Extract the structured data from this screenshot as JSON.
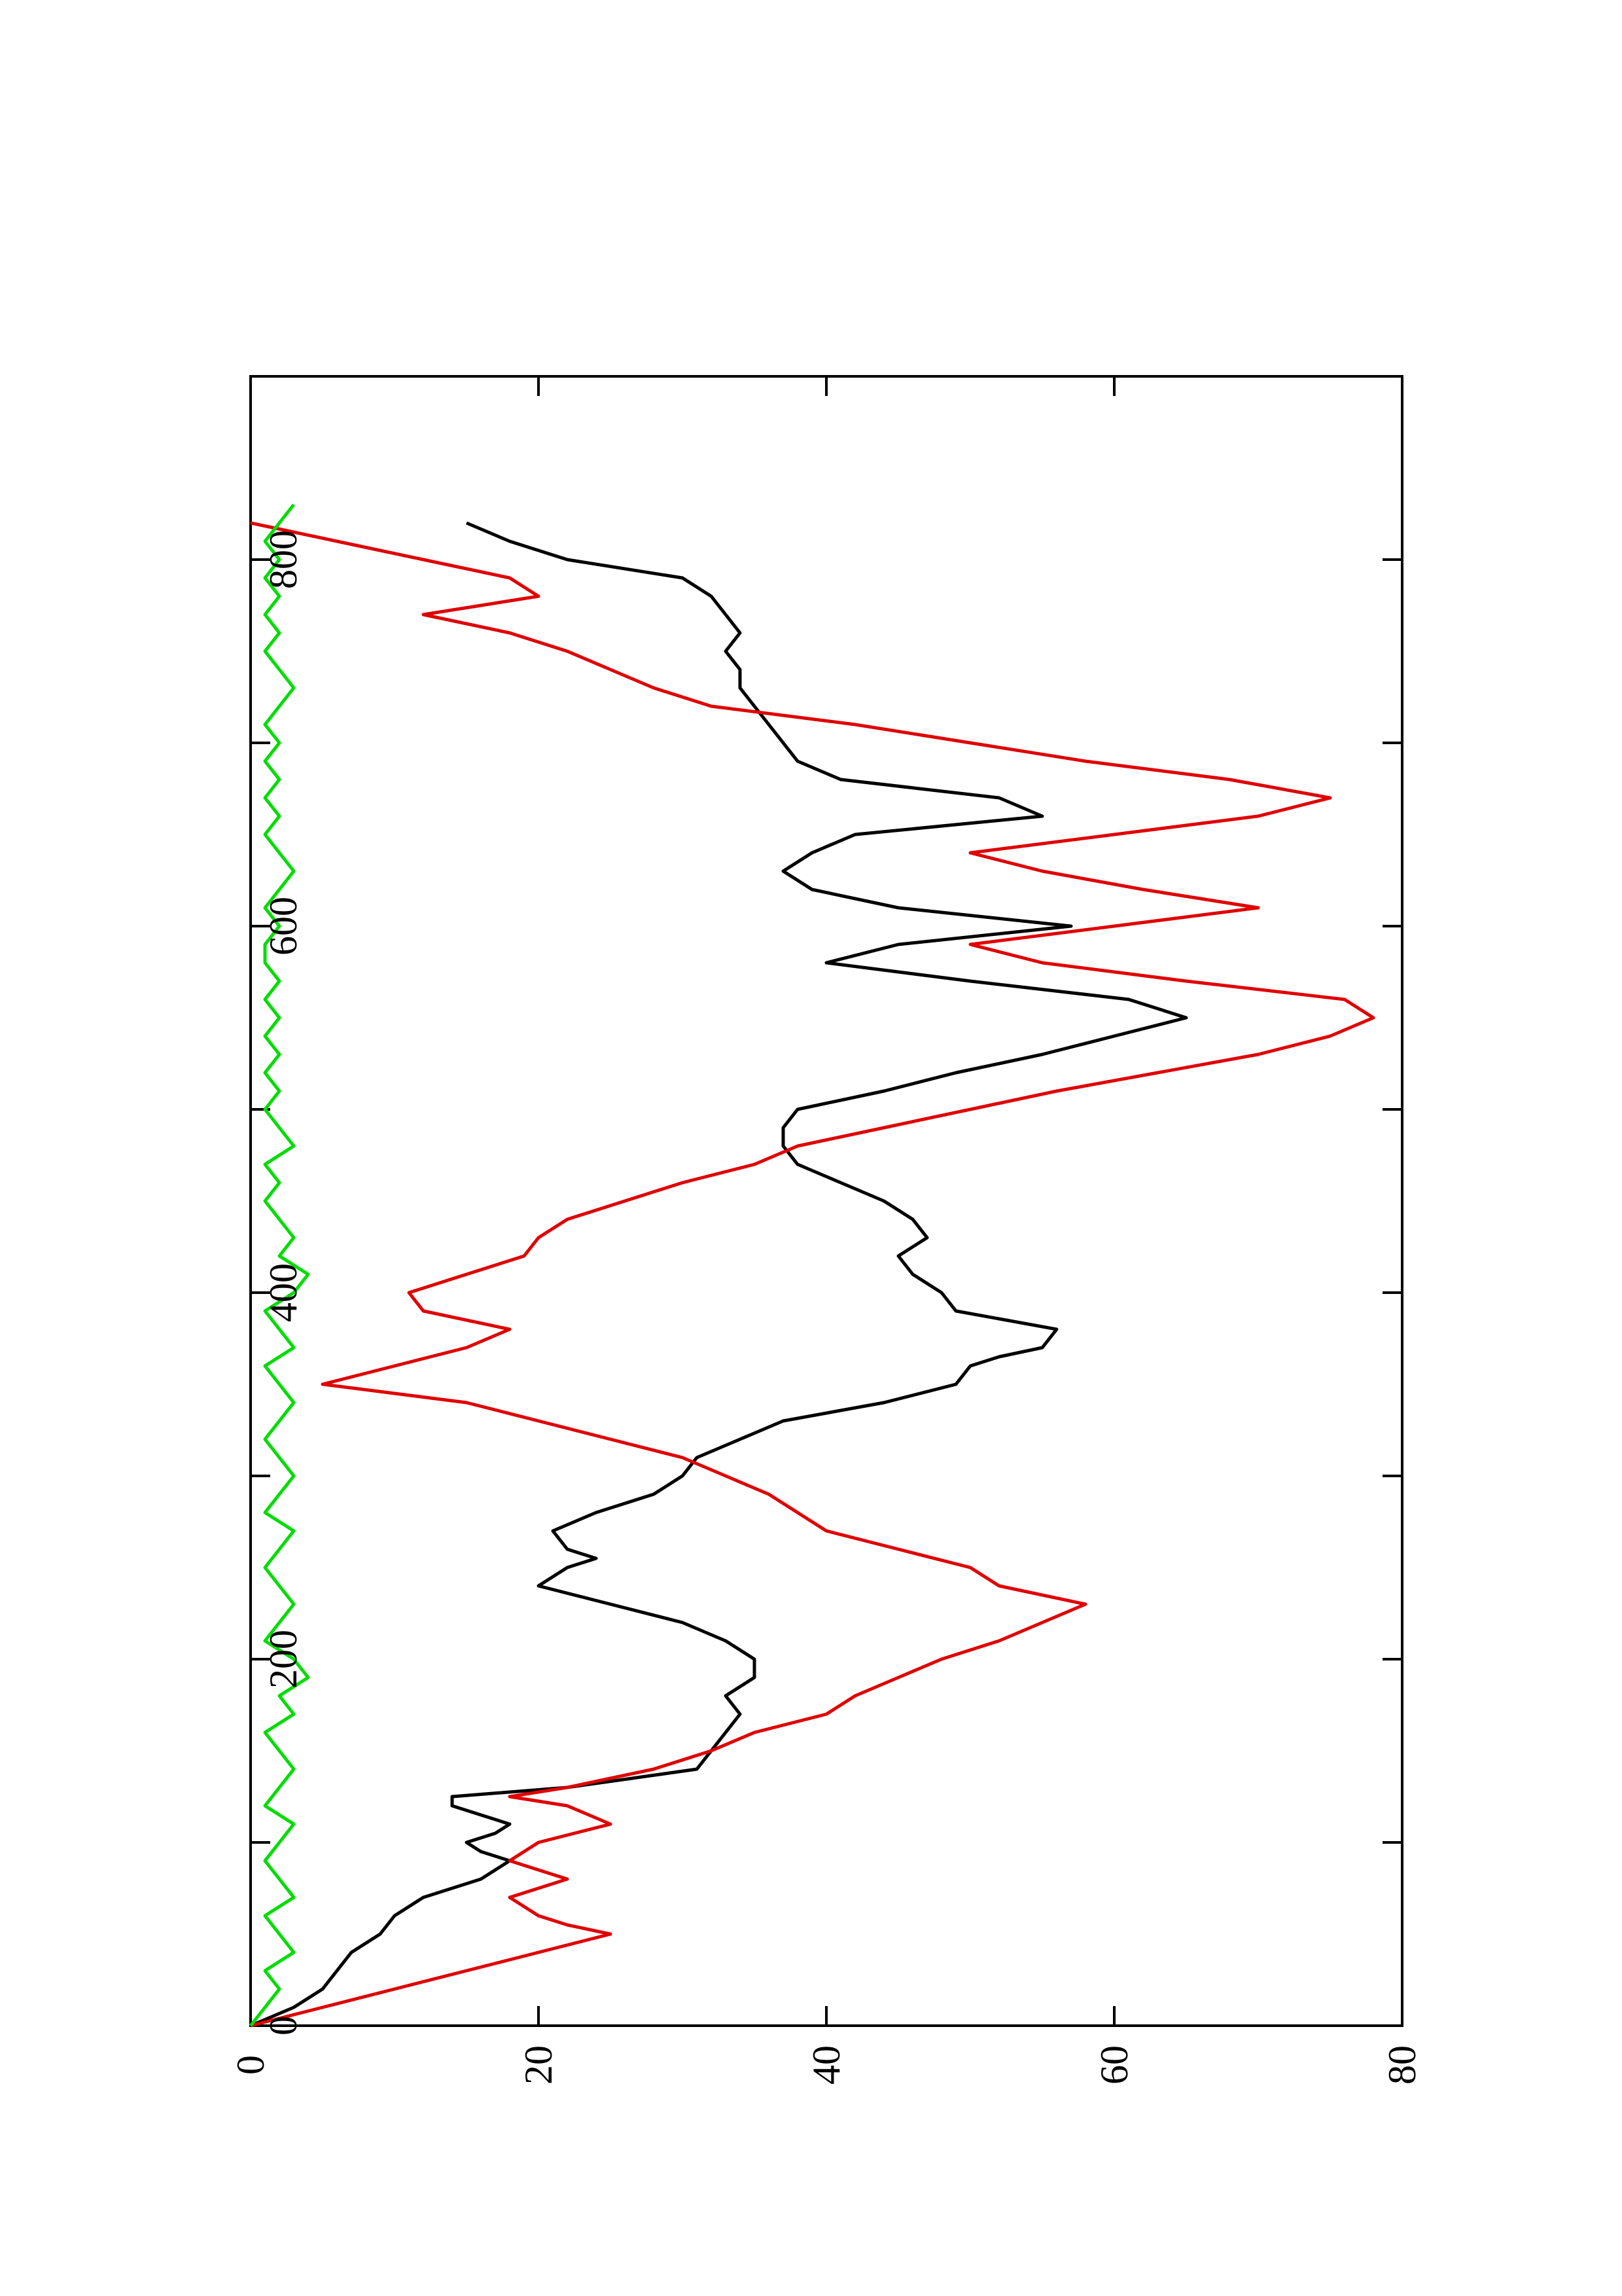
{
  "chart_data": {
    "type": "line",
    "orientation": "rotated-90-ccw",
    "title": "",
    "xlabel": "",
    "ylabel": "",
    "xlim": [
      0,
      900
    ],
    "ylim": [
      0,
      80
    ],
    "x_ticks": [
      0,
      200,
      400,
      600,
      800
    ],
    "x_ticks_minor": [
      100,
      300,
      500,
      700
    ],
    "y_ticks": [
      0,
      20,
      40,
      60,
      80
    ],
    "grid": false,
    "legend": "none",
    "series": [
      {
        "color": "#000000",
        "x": [
          0,
          10,
          20,
          30,
          40,
          50,
          60,
          70,
          80,
          85,
          90,
          95,
          100,
          105,
          110,
          115,
          120,
          125,
          130,
          140,
          150,
          160,
          170,
          180,
          190,
          200,
          210,
          220,
          230,
          240,
          250,
          255,
          260,
          270,
          280,
          290,
          300,
          310,
          320,
          330,
          340,
          350,
          360,
          365,
          370,
          380,
          390,
          400,
          410,
          420,
          430,
          440,
          450,
          460,
          470,
          480,
          490,
          500,
          510,
          520,
          530,
          540,
          550,
          560,
          570,
          580,
          590,
          600,
          610,
          620,
          630,
          640,
          650,
          660,
          670,
          680,
          690,
          700,
          710,
          720,
          730,
          740,
          750,
          760,
          770,
          780,
          790,
          800,
          810,
          820
        ],
        "y": [
          0,
          3,
          5,
          6,
          7,
          9,
          10,
          12,
          16,
          17,
          18,
          16,
          15,
          17,
          18,
          16,
          14,
          14,
          22,
          31,
          32,
          33,
          34,
          33,
          35,
          35,
          33,
          30,
          25,
          20,
          22,
          24,
          22,
          21,
          24,
          28,
          30,
          31,
          34,
          37,
          44,
          49,
          50,
          52,
          55,
          56,
          49,
          48,
          46,
          45,
          47,
          46,
          44,
          41,
          38,
          37,
          37,
          38,
          44,
          49,
          55,
          60,
          65,
          61,
          50,
          40,
          45,
          57,
          45,
          39,
          37,
          39,
          42,
          55,
          52,
          41,
          38,
          37,
          36,
          35,
          34,
          34,
          33,
          34,
          33,
          32,
          30,
          22,
          18,
          15
        ]
      },
      {
        "color": "#e00000",
        "x": [
          0,
          10,
          20,
          30,
          40,
          50,
          55,
          60,
          70,
          80,
          90,
          100,
          110,
          120,
          125,
          130,
          140,
          150,
          160,
          170,
          180,
          190,
          200,
          210,
          220,
          230,
          240,
          250,
          260,
          270,
          280,
          290,
          300,
          310,
          320,
          330,
          340,
          350,
          360,
          370,
          380,
          390,
          400,
          410,
          420,
          430,
          440,
          450,
          460,
          470,
          480,
          490,
          500,
          510,
          520,
          530,
          540,
          550,
          560,
          570,
          580,
          590,
          600,
          610,
          620,
          630,
          640,
          650,
          660,
          670,
          680,
          690,
          700,
          710,
          720,
          730,
          740,
          750,
          760,
          770,
          780,
          790,
          800,
          810,
          820
        ],
        "y": [
          0,
          5,
          10,
          15,
          20,
          25,
          22,
          20,
          18,
          22,
          18,
          20,
          25,
          22,
          18,
          22,
          28,
          32,
          35,
          40,
          42,
          45,
          48,
          52,
          55,
          58,
          52,
          50,
          45,
          40,
          38,
          36,
          33,
          30,
          25,
          20,
          15,
          5,
          10,
          15,
          18,
          12,
          11,
          15,
          19,
          20,
          22,
          26,
          30,
          35,
          38,
          44,
          50,
          56,
          63,
          70,
          75,
          78,
          76,
          65,
          55,
          50,
          60,
          70,
          62,
          55,
          50,
          60,
          70,
          75,
          68,
          58,
          50,
          42,
          32,
          28,
          25,
          22,
          18,
          12,
          20,
          18,
          12,
          6,
          0
        ]
      },
      {
        "color": "#00dd00",
        "x": [
          0,
          10,
          20,
          30,
          40,
          50,
          60,
          70,
          80,
          90,
          100,
          110,
          120,
          130,
          140,
          150,
          160,
          170,
          180,
          190,
          200,
          210,
          220,
          230,
          240,
          250,
          260,
          270,
          280,
          290,
          300,
          310,
          320,
          330,
          340,
          350,
          360,
          370,
          380,
          390,
          400,
          410,
          420,
          430,
          440,
          450,
          460,
          470,
          480,
          490,
          500,
          510,
          520,
          530,
          540,
          550,
          560,
          570,
          580,
          590,
          600,
          610,
          620,
          630,
          640,
          650,
          660,
          670,
          680,
          690,
          700,
          710,
          720,
          730,
          740,
          750,
          760,
          770,
          780,
          790,
          800,
          810,
          820,
          830
        ],
        "y": [
          0,
          1,
          2,
          1,
          3,
          2,
          1,
          3,
          2,
          1,
          2,
          3,
          1,
          2,
          3,
          2,
          1,
          3,
          2,
          4,
          3,
          1,
          2,
          3,
          2,
          1,
          2,
          3,
          1,
          2,
          3,
          2,
          1,
          2,
          3,
          2,
          1,
          3,
          2,
          1,
          3,
          4,
          2,
          3,
          2,
          1,
          2,
          1,
          3,
          2,
          1,
          2,
          1,
          2,
          1,
          2,
          1,
          2,
          1,
          1,
          2,
          1,
          2,
          3,
          2,
          1,
          2,
          1,
          2,
          1,
          2,
          1,
          2,
          3,
          2,
          1,
          2,
          1,
          2,
          1,
          2,
          1,
          2,
          3
        ]
      }
    ]
  }
}
